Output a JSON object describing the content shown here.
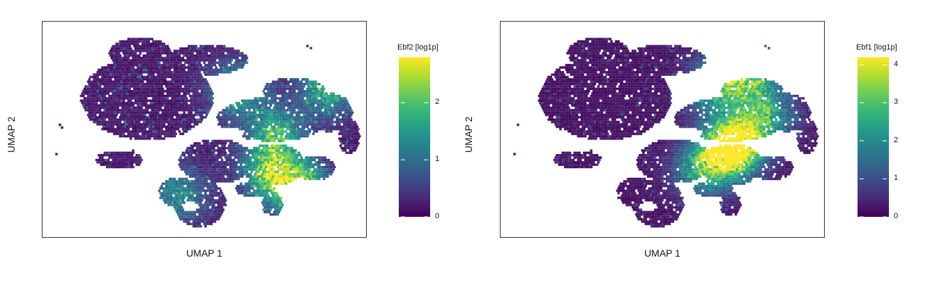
{
  "chart_data": [
    {
      "type": "heatmap",
      "subtype": "umap-hexbin",
      "xlabel": "UMAP 1",
      "ylabel": "UMAP 2",
      "colorbar": {
        "title": "Ebf2 [log1p]",
        "colormap": "viridis",
        "range": [
          0,
          2.8
        ],
        "ticks": [
          0,
          1,
          2
        ]
      },
      "grid": false,
      "axis_ticks": false,
      "high_expression_regions": [
        {
          "x": 0.72,
          "y": 0.52,
          "value": 1.8
        },
        {
          "x": 0.7,
          "y": 0.7,
          "value": 2.2
        },
        {
          "x": 0.8,
          "y": 0.78,
          "value": 2.6
        },
        {
          "x": 0.88,
          "y": 0.3,
          "value": 2.0
        },
        {
          "x": 0.6,
          "y": 0.32,
          "value": 1.6
        },
        {
          "x": 0.42,
          "y": 0.8,
          "value": 1.4
        }
      ]
    },
    {
      "type": "heatmap",
      "subtype": "umap-hexbin",
      "xlabel": "UMAP 1",
      "ylabel": "UMAP 2",
      "colorbar": {
        "title": "Ebf1 [log1p]",
        "colormap": "viridis",
        "range": [
          0,
          4.2
        ],
        "ticks": [
          0,
          1,
          2,
          3,
          4
        ]
      },
      "grid": false,
      "axis_ticks": false,
      "high_expression_regions": [
        {
          "x": 0.7,
          "y": 0.6,
          "value": 3.8
        },
        {
          "x": 0.74,
          "y": 0.55,
          "value": 3.5
        },
        {
          "x": 0.76,
          "y": 0.23,
          "value": 3.4
        },
        {
          "x": 0.66,
          "y": 0.3,
          "value": 2.8
        },
        {
          "x": 0.82,
          "y": 0.42,
          "value": 2.5
        },
        {
          "x": 0.62,
          "y": 0.68,
          "value": 2.6
        }
      ]
    }
  ]
}
